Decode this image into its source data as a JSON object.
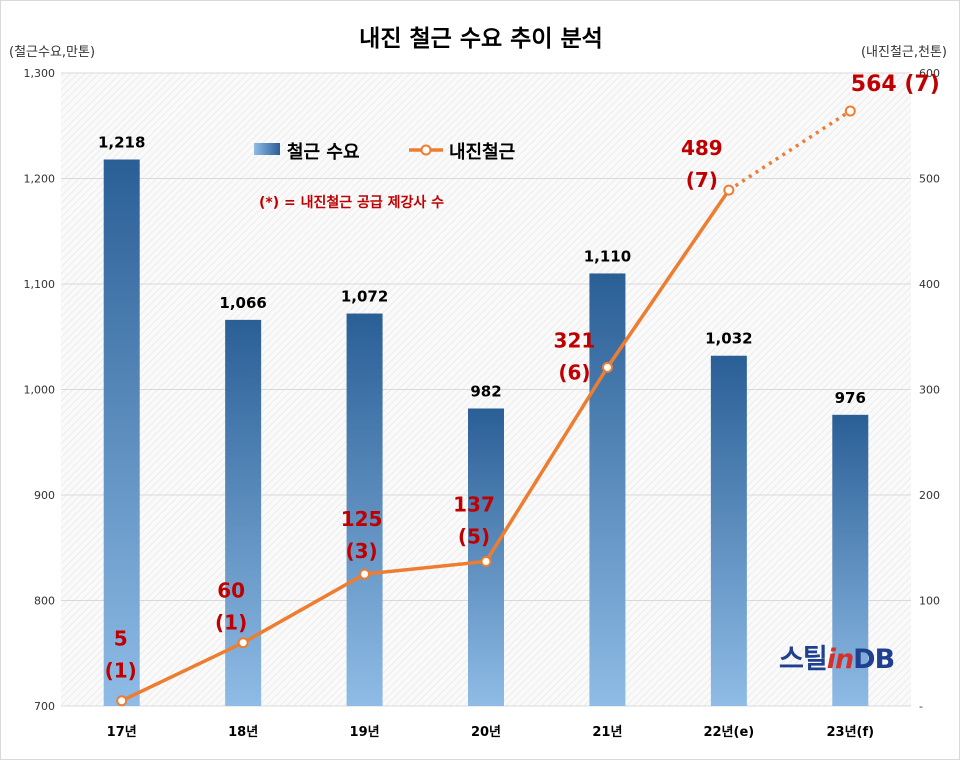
{
  "title": "내진 철근 수요 추이 분석",
  "left_unit": "(철근수요,만톤)",
  "right_unit": "(내진철근,천톤)",
  "note": "(*) = 내진철근 공급 제강사 수",
  "watermark": {
    "part1": "스틸",
    "part2": "in",
    "part3": "DB"
  },
  "colors": {
    "bar_top": "#2a5f96",
    "bar_bottom": "#8fbce6",
    "line": "#ed7d31",
    "label_red": "#c00000",
    "grid": "#d9d9d9",
    "plot_bg": "#f2f2f2"
  },
  "chart_data": {
    "type": "bar+line",
    "categories": [
      "17년",
      "18년",
      "19년",
      "20년",
      "21년",
      "22년(e)",
      "23년(f)"
    ],
    "series": [
      {
        "name": "철근 수요",
        "type": "bar",
        "axis": "left",
        "values": [
          1218,
          1066,
          1072,
          982,
          1110,
          1032,
          976
        ],
        "labels": [
          "1,218",
          "1,066",
          "1,072",
          "982",
          "1,110",
          "1,032",
          "976"
        ]
      },
      {
        "name": "내진철근",
        "type": "line",
        "axis": "right",
        "values": [
          5,
          60,
          125,
          137,
          321,
          489,
          564
        ],
        "labels": [
          "5",
          "60",
          "125",
          "137",
          "321",
          "489",
          "564 (7)"
        ],
        "sublabels": [
          "(1)",
          "(1)",
          "(3)",
          "(5)",
          "(6)",
          "(7)",
          ""
        ],
        "dashed_last_segment": true
      }
    ],
    "left_axis": {
      "min": 700,
      "max": 1300,
      "ticks": [
        "700",
        "800",
        "900",
        "1,000",
        "1,100",
        "1,200",
        "1,300"
      ]
    },
    "right_axis": {
      "min": 0,
      "max": 600,
      "ticks": [
        "-",
        "100",
        "200",
        "300",
        "400",
        "500",
        "600"
      ]
    },
    "legend_position": "top-left",
    "grid": true
  }
}
